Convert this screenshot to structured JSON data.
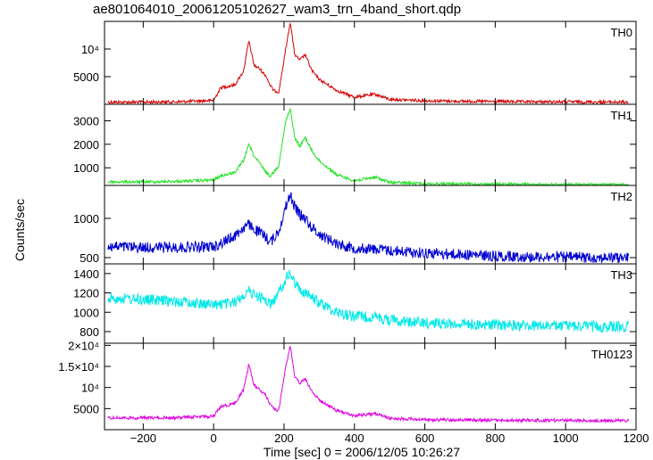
{
  "chart_data": {
    "type": "line",
    "title": "ae801064010_20061205102627_wam3_trn_4band_short.qdp",
    "xlabel": "Time [sec] 0 = 2006/12/05 10:26:27",
    "ylabel": "Counts/sec",
    "xlim": [
      -310,
      1200
    ],
    "xticks": [
      "−200",
      "0",
      "200",
      "400",
      "600",
      "800",
      "1000",
      "1200"
    ],
    "xtick_values": [
      -200,
      0,
      200,
      400,
      600,
      800,
      1000,
      1200
    ],
    "x": [
      -300,
      -200,
      -100,
      0,
      20,
      60,
      85,
      100,
      115,
      130,
      150,
      160,
      170,
      185,
      205,
      218,
      230,
      245,
      260,
      280,
      300,
      350,
      400,
      460,
      500,
      600,
      700,
      800,
      900,
      1000,
      1100,
      1180
    ],
    "panels": [
      {
        "name": "TH0",
        "color": "#d40000",
        "ylim": [
          0,
          15000
        ],
        "yticks": [
          "5000",
          "10⁴"
        ],
        "ytick_values": [
          5000,
          10000
        ],
        "values": [
          400,
          400,
          450,
          700,
          3000,
          3500,
          6000,
          11500,
          7000,
          6500,
          5000,
          3500,
          2500,
          2200,
          10000,
          15000,
          9000,
          8000,
          9000,
          6000,
          4500,
          2500,
          1300,
          1800,
          900,
          650,
          550,
          500,
          450,
          450,
          400,
          400
        ]
      },
      {
        "name": "TH1",
        "color": "#22e022",
        "ylim": [
          250,
          3700
        ],
        "yticks": [
          "1000",
          "2000",
          "3000"
        ],
        "ytick_values": [
          1000,
          2000,
          3000
        ],
        "values": [
          400,
          400,
          420,
          480,
          650,
          800,
          1300,
          2000,
          1500,
          1200,
          800,
          650,
          800,
          1100,
          3000,
          3500,
          2300,
          1900,
          2300,
          1700,
          1300,
          700,
          450,
          600,
          380,
          320,
          310,
          300,
          290,
          290,
          280,
          280
        ]
      },
      {
        "name": "TH2",
        "color": "#0000d0",
        "ylim": [
          420,
          1420
        ],
        "yticks": [
          "500",
          "1000"
        ],
        "ytick_values": [
          500,
          1000
        ],
        "values": [
          640,
          630,
          630,
          640,
          680,
          780,
          880,
          920,
          860,
          820,
          760,
          700,
          740,
          840,
          1150,
          1300,
          1150,
          1050,
          1000,
          880,
          800,
          680,
          620,
          610,
          590,
          560,
          540,
          520,
          510,
          505,
          500,
          495
        ]
      },
      {
        "name": "TH3",
        "color": "#00e8e8",
        "ylim": [
          680,
          1500
        ],
        "yticks": [
          "800",
          "1000",
          "1200",
          "1400"
        ],
        "ytick_values": [
          800,
          1000,
          1200,
          1400
        ],
        "values": [
          1150,
          1130,
          1110,
          1080,
          1080,
          1100,
          1180,
          1220,
          1180,
          1160,
          1120,
          1080,
          1120,
          1200,
          1350,
          1400,
          1300,
          1240,
          1200,
          1150,
          1100,
          1000,
          960,
          950,
          920,
          890,
          880,
          870,
          860,
          860,
          850,
          850
        ]
      },
      {
        "name": "TH0123",
        "color": "#e000e0",
        "ylim": [
          0,
          20500
        ],
        "yticks": [
          "5000",
          "10⁴",
          "1.5×10⁴",
          "2×10⁴"
        ],
        "ytick_values": [
          5000,
          10000,
          15000,
          20000
        ],
        "values": [
          2800,
          2800,
          2850,
          3200,
          5500,
          6200,
          9500,
          15500,
          10500,
          9500,
          8000,
          6000,
          5000,
          4500,
          15000,
          20000,
          12500,
          11000,
          12000,
          9000,
          7000,
          4500,
          3300,
          3800,
          2700,
          2400,
          2300,
          2250,
          2200,
          2200,
          2150,
          2150
        ]
      }
    ]
  }
}
